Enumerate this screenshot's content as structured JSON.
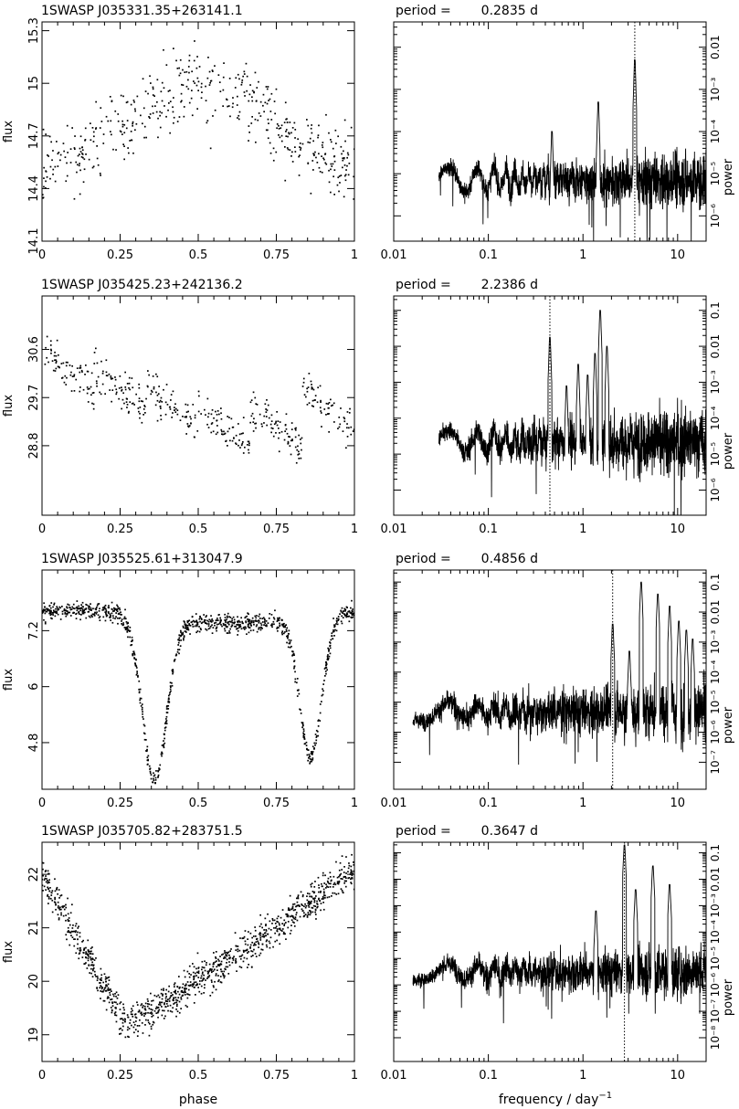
{
  "figure": {
    "xlabel_left": "phase",
    "xlabel_right_main": "frequency / day",
    "xlabel_right_sup": "−1"
  },
  "chart_data": [
    {
      "type": "scatter",
      "panel": 1,
      "title": "1SWASP J035331.35+263141.1",
      "ylabel": "flux",
      "xlim": [
        0,
        1
      ],
      "ylim": [
        14.1,
        15.35
      ],
      "x_ticks": [
        "0",
        "0.25",
        "0.5",
        "0.75",
        "1"
      ],
      "y_ticks": [
        14.1,
        14.4,
        14.7,
        15,
        15.3
      ],
      "model": {
        "kind": "sine",
        "mean": 14.76,
        "amp": 0.22,
        "phase0": 0.5,
        "scatter": 0.19,
        "n": 480
      }
    },
    {
      "type": "line",
      "panel": 1,
      "period_label": "period =",
      "period_value": "0.2835 d",
      "period_days": 0.2835,
      "xscale": "log",
      "xlim": [
        0.01,
        20
      ],
      "x_ticks": [
        "0.01",
        "0.1",
        "1",
        "10"
      ],
      "ylabel": "power",
      "yscale": "log",
      "ylim_exp": [
        -6.6,
        -1.4
      ],
      "y_tick_exponents": [
        -6,
        -5,
        -4,
        -3,
        -2
      ],
      "y_tick_labels": [
        "10⁻⁶",
        "10⁻⁵",
        "10⁻⁴",
        "10⁻³",
        "0.01"
      ],
      "marked_frequency": 3.527,
      "model": {
        "base": -5.15,
        "fmin": 0.03,
        "amp": 0.55,
        "peaks": [
          [
            3.527,
            -2.3
          ],
          [
            1.45,
            -3.3
          ],
          [
            0.47,
            -4.0
          ]
        ]
      }
    },
    {
      "type": "scatter",
      "panel": 2,
      "title": "1SWASP J035425.23+242136.2",
      "ylabel": "flux",
      "xlim": [
        0,
        1
      ],
      "ylim": [
        27.5,
        31.6
      ],
      "x_ticks": [
        "0",
        "0.25",
        "0.5",
        "0.75",
        "1"
      ],
      "y_ticks": [
        28.8,
        29.7,
        30.6
      ],
      "model": {
        "kind": "sawtooth",
        "top": 30.6,
        "bottom": 28.4,
        "segments": 6,
        "scatter": 0.32,
        "n": 460
      }
    },
    {
      "type": "line",
      "panel": 2,
      "period_label": "period =",
      "period_value": "2.2386 d",
      "period_days": 2.2386,
      "xscale": "log",
      "xlim": [
        0.01,
        20
      ],
      "x_ticks": [
        "0.01",
        "0.1",
        "1",
        "10"
      ],
      "ylabel": "power",
      "yscale": "log",
      "ylim_exp": [
        -6.7,
        -0.6
      ],
      "y_tick_exponents": [
        -6,
        -5,
        -4,
        -3,
        -2,
        -1
      ],
      "y_tick_labels": [
        "10⁻⁶",
        "10⁻⁵",
        "10⁻⁴",
        "10⁻³",
        "0.01",
        "0.1"
      ],
      "marked_frequency": 0.447,
      "model": {
        "base": -4.65,
        "fmin": 0.03,
        "amp": 0.75,
        "peaks": [
          [
            0.447,
            -1.75
          ],
          [
            1.52,
            -1.0
          ],
          [
            0.89,
            -2.5
          ],
          [
            1.34,
            -2.2
          ],
          [
            1.79,
            -2.0
          ],
          [
            0.67,
            -3.1
          ],
          [
            1.12,
            -2.8
          ]
        ]
      }
    },
    {
      "type": "scatter",
      "panel": 3,
      "title": "1SWASP J035525.61+313047.9",
      "ylabel": "flux",
      "xlim": [
        0,
        1
      ],
      "ylim": [
        3.8,
        8.5
      ],
      "x_ticks": [
        "0",
        "0.25",
        "0.5",
        "0.75",
        "1"
      ],
      "y_ticks": [
        4.8,
        6,
        7.2
      ],
      "model": {
        "kind": "eclipsing",
        "max": 7.5,
        "primary": [
          0.36,
          3.5,
          0.055
        ],
        "secondary": [
          0.86,
          3.0,
          0.05
        ],
        "scatter": 0.16,
        "n": 1000
      }
    },
    {
      "type": "line",
      "panel": 3,
      "period_label": "period =",
      "period_value": "0.4856 d",
      "period_days": 0.4856,
      "xscale": "log",
      "xlim": [
        0.01,
        20
      ],
      "x_ticks": [
        "0.01",
        "0.1",
        "1",
        "10"
      ],
      "ylabel": "power",
      "yscale": "log",
      "ylim_exp": [
        -7.9,
        -0.6
      ],
      "y_tick_exponents": [
        -7,
        -6,
        -5,
        -4,
        -3,
        -2,
        -1
      ],
      "y_tick_labels": [
        "10⁻⁷",
        "10⁻⁶",
        "10⁻⁵",
        "10⁻⁴",
        "10⁻³",
        "0.01",
        "0.1"
      ],
      "marked_frequency": 2.059,
      "model": {
        "base": -5.3,
        "fmin": 0.016,
        "amp": 0.85,
        "peaks": [
          [
            2.06,
            -2.4
          ],
          [
            4.12,
            -1.0
          ],
          [
            6.18,
            -1.4
          ],
          [
            8.24,
            -1.8
          ],
          [
            10.3,
            -2.3
          ],
          [
            12.36,
            -2.6
          ],
          [
            14.42,
            -2.9
          ],
          [
            3.09,
            -3.3
          ]
        ]
      }
    },
    {
      "type": "scatter",
      "panel": 4,
      "title": "1SWASP J035705.82+283751.5",
      "ylabel": "flux",
      "xlim": [
        0,
        1
      ],
      "ylim": [
        18.5,
        22.6
      ],
      "x_ticks": [
        "0",
        "0.25",
        "0.5",
        "0.75",
        "1"
      ],
      "y_ticks": [
        19,
        20,
        21,
        22
      ],
      "model": {
        "kind": "asymmetric",
        "max": 22.1,
        "min": 19.2,
        "minphase": 0.27,
        "scatter": 0.28,
        "n": 1100
      }
    },
    {
      "type": "line",
      "panel": 4,
      "period_label": "period =",
      "period_value": "0.3647 d",
      "period_days": 0.3647,
      "xscale": "log",
      "xlim": [
        0.01,
        20
      ],
      "x_ticks": [
        "0.01",
        "0.1",
        "1",
        "10"
      ],
      "ylabel": "power",
      "yscale": "log",
      "ylim_exp": [
        -8.9,
        -0.6
      ],
      "y_tick_exponents": [
        -8,
        -7,
        -6,
        -5,
        -4,
        -3,
        -2,
        -1
      ],
      "y_tick_labels": [
        "10⁻⁸",
        "10⁻⁷",
        "10⁻⁶",
        "10⁻⁵",
        "10⁻⁴",
        "10⁻³",
        "0.01",
        "0.1"
      ],
      "marked_frequency": 2.742,
      "model": {
        "base": -5.5,
        "fmin": 0.016,
        "amp": 0.85,
        "peaks": [
          [
            2.742,
            -0.7
          ],
          [
            5.48,
            -1.5
          ],
          [
            3.6,
            -2.4
          ],
          [
            8.22,
            -2.2
          ],
          [
            1.37,
            -3.2
          ]
        ]
      }
    }
  ]
}
